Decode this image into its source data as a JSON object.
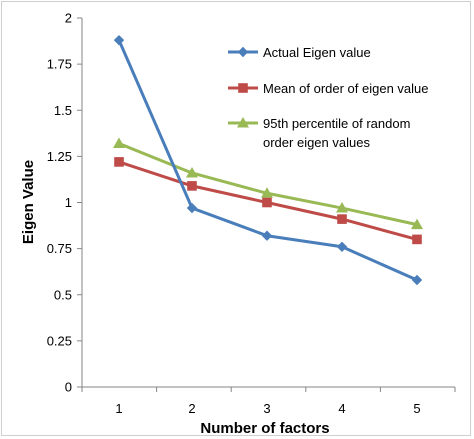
{
  "chart_data": {
    "type": "line",
    "title": "",
    "xlabel": "Number of factors",
    "ylabel": "Eigen Value",
    "categories": [
      "1",
      "2",
      "3",
      "4",
      "5"
    ],
    "x": [
      1,
      2,
      3,
      4,
      5
    ],
    "ylim": [
      0,
      2
    ],
    "yticks": [
      "0",
      "0.25",
      "0.5",
      "0.75",
      "1",
      "1.25",
      "1.5",
      "1.75",
      "2"
    ],
    "grid": false,
    "legend_position": "top-right",
    "series": [
      {
        "name": "Actual Eigen value",
        "values": [
          1.88,
          0.97,
          0.82,
          0.76,
          0.58
        ],
        "color": "#4a7ebb",
        "marker": "diamond"
      },
      {
        "name": "Mean of order of eigen value",
        "values": [
          1.22,
          1.09,
          1.0,
          0.91,
          0.8
        ],
        "color": "#be4b48",
        "marker": "square"
      },
      {
        "name_lines": [
          "95th percentile of random",
          "order eigen values"
        ],
        "values": [
          1.32,
          1.16,
          1.05,
          0.97,
          0.88
        ],
        "color": "#98b954",
        "marker": "triangle"
      }
    ]
  }
}
